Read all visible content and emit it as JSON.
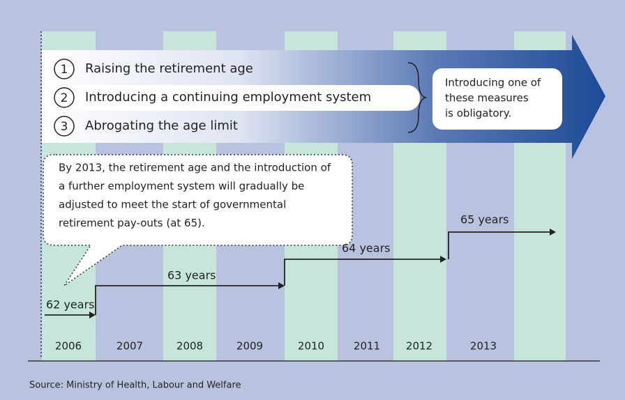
{
  "measures": [
    {
      "number": "1",
      "label": "Raising the retirement age"
    },
    {
      "number": "2",
      "label": "Introducing a continuing employment system"
    },
    {
      "number": "3",
      "label": "Abrogating the age limit"
    }
  ],
  "note": [
    "Introducing one of",
    "these measures",
    "is obligatory."
  ],
  "callout": [
    "By 2013, the retirement age and the introduction of",
    "a further employment system will gradually be",
    "adjusted to meet the start of governmental",
    "retirement pay-outs (at 65)."
  ],
  "ages": [
    "62 years",
    "63 years",
    "64 years",
    "65 years"
  ],
  "years": [
    "2006",
    "2007",
    "2008",
    "2009",
    "2010",
    "2011",
    "2012",
    "2013"
  ],
  "source": "Source: Ministry of Health, Labour and Welfare"
}
